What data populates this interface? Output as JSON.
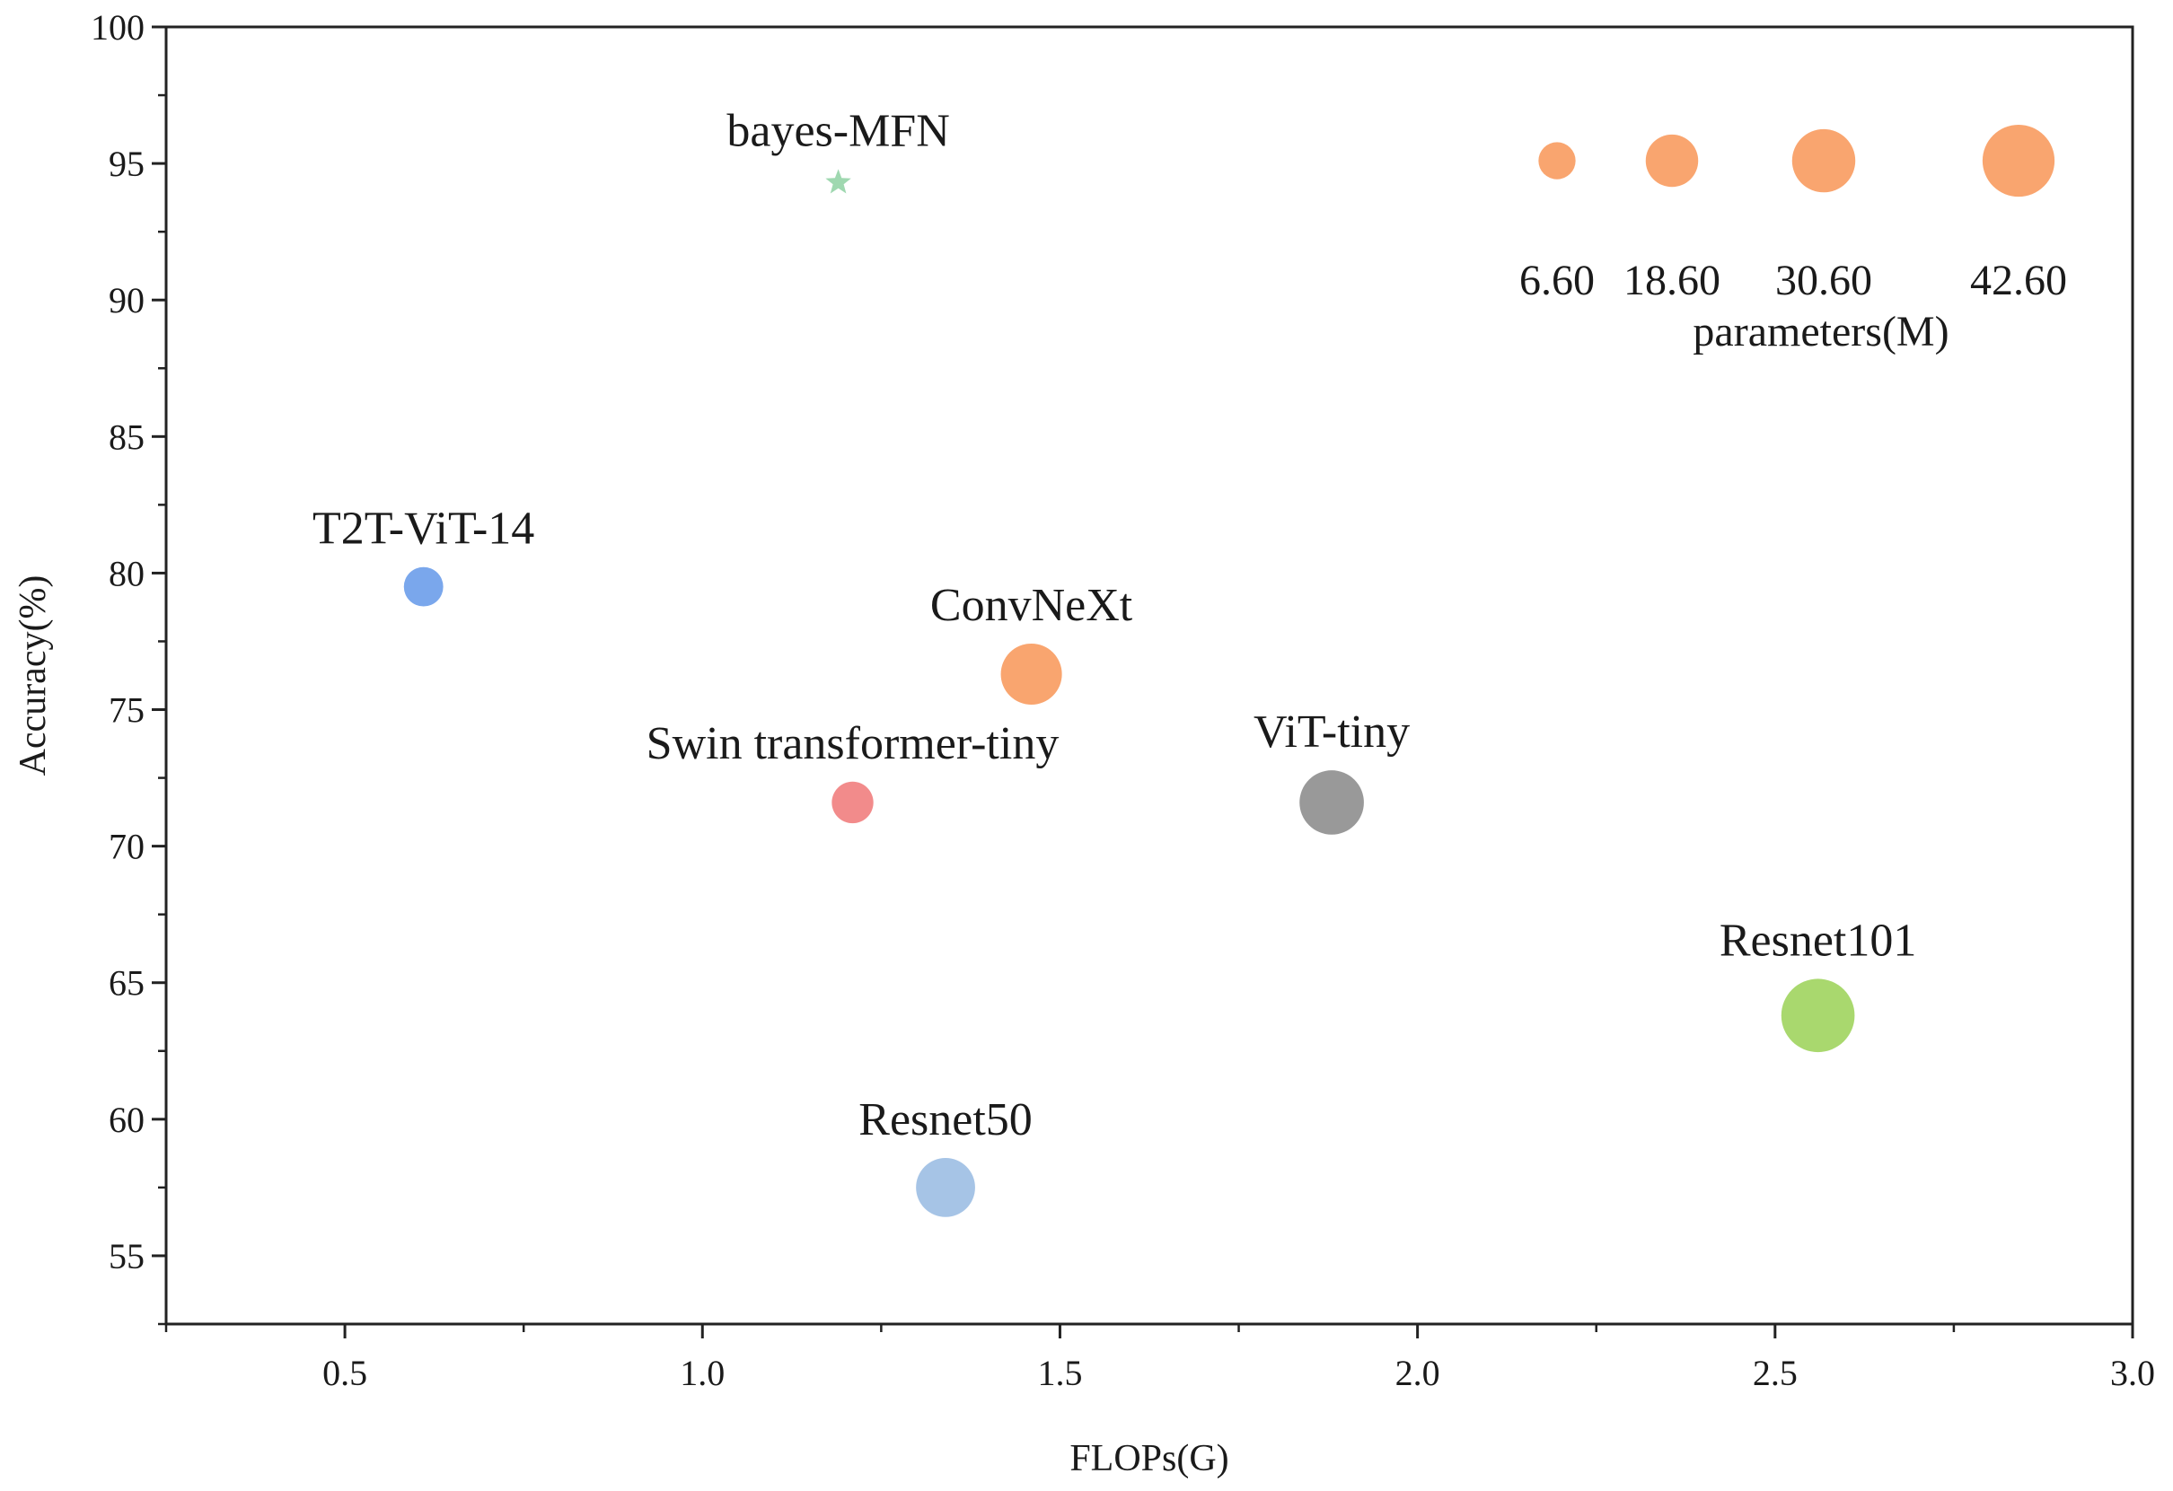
{
  "chart_data": {
    "type": "bubble",
    "xlabel": "FLOPs(G)",
    "ylabel": "Accuracy(%)",
    "xlim": [
      0.25,
      3.0
    ],
    "ylim": [
      52.5,
      100
    ],
    "x_ticks": [
      0.5,
      1.0,
      1.5,
      2.0,
      2.5,
      3.0
    ],
    "x_tick_labels": [
      "0.5",
      "1.0",
      "1.5",
      "2.0",
      "2.5",
      "3.0"
    ],
    "y_ticks": [
      55,
      60,
      65,
      70,
      75,
      80,
      85,
      90,
      95,
      100
    ],
    "y_tick_labels": [
      "55",
      "60",
      "65",
      "70",
      "75",
      "80",
      "85",
      "90",
      "95",
      "100"
    ],
    "grid": false,
    "points": [
      {
        "name": "bayes-MFN",
        "x": 1.19,
        "y": 94.3,
        "params": 2.0,
        "marker": "star",
        "color": "#9fd8b0"
      },
      {
        "name": "T2T-ViT-14",
        "x": 0.61,
        "y": 79.5,
        "params": 8.0,
        "marker": "circle",
        "color": "#7aa7ec"
      },
      {
        "name": "ConvNeXt",
        "x": 1.46,
        "y": 76.3,
        "params": 28.0,
        "marker": "circle",
        "color": "#f9a56f"
      },
      {
        "name": "Swin transformer-tiny",
        "x": 1.21,
        "y": 71.6,
        "params": 9.5,
        "marker": "circle",
        "color": "#f28b8b"
      },
      {
        "name": "ViT-tiny",
        "x": 1.88,
        "y": 71.6,
        "params": 32.0,
        "marker": "circle",
        "color": "#999999"
      },
      {
        "name": "Resnet101",
        "x": 2.56,
        "y": 63.8,
        "params": 44.5,
        "marker": "circle",
        "color": "#a9d86e"
      },
      {
        "name": "Resnet50",
        "x": 1.34,
        "y": 57.5,
        "params": 25.6,
        "marker": "circle",
        "color": "#a6c4e6"
      }
    ],
    "size_legend": {
      "title": "parameters(M)",
      "values": [
        6.6,
        18.6,
        30.6,
        42.6
      ],
      "labels": [
        "6.60",
        "18.60",
        "30.60",
        "42.60"
      ],
      "color": "#f9a56f",
      "placement": "top-right"
    }
  }
}
